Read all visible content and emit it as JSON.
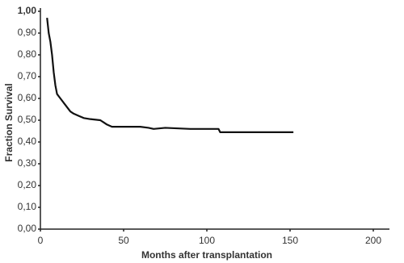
{
  "chart_data": {
    "type": "line",
    "xlabel": "Months after transplantation",
    "ylabel": "Fraction Survival",
    "x": [
      4,
      5,
      6,
      7,
      8,
      9,
      10,
      12,
      14,
      16,
      18,
      20,
      23,
      26,
      30,
      36,
      38,
      40,
      43,
      50,
      60,
      65,
      68,
      75,
      90,
      100,
      107,
      108,
      130,
      152
    ],
    "series": [
      {
        "color": "#111111",
        "values": [
          0.97,
          0.9,
          0.86,
          0.8,
          0.72,
          0.66,
          0.62,
          0.6,
          0.58,
          0.56,
          0.54,
          0.53,
          0.52,
          0.51,
          0.505,
          0.5,
          0.49,
          0.48,
          0.47,
          0.47,
          0.47,
          0.465,
          0.46,
          0.465,
          0.46,
          0.46,
          0.46,
          0.445,
          0.445,
          0.445
        ]
      }
    ],
    "xlim": [
      0,
      200
    ],
    "xticks": [
      0,
      50,
      100,
      150,
      200
    ],
    "ylim": [
      0,
      1
    ],
    "yticks": [
      {
        "value": 0,
        "label": "0,00"
      },
      {
        "value": 0.1,
        "label": "0,10"
      },
      {
        "value": 0.2,
        "label": "0,20"
      },
      {
        "value": 0.3,
        "label": "0,30"
      },
      {
        "value": 0.4,
        "label": "0,40"
      },
      {
        "value": 0.5,
        "label": "0,50"
      },
      {
        "value": 0.6,
        "label": "0,60"
      },
      {
        "value": 0.7,
        "label": "0,70"
      },
      {
        "value": 0.8,
        "label": "0,80"
      },
      {
        "value": 0.9,
        "label": "0,90"
      },
      {
        "value": 1,
        "label": "1,00"
      }
    ],
    "grid": false
  }
}
